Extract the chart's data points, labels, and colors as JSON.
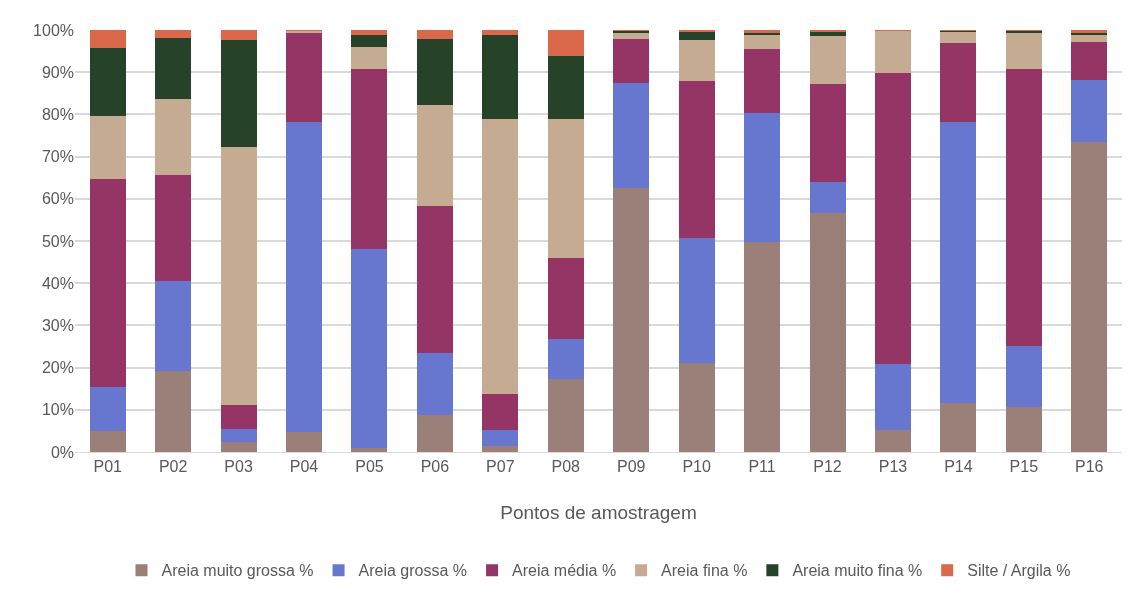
{
  "chart_data": {
    "type": "bar",
    "stacked": true,
    "xlabel": "Pontos de amostragem",
    "categories": [
      "P01",
      "P02",
      "P03",
      "P04",
      "P05",
      "P06",
      "P07",
      "P08",
      "P09",
      "P10",
      "P11",
      "P12",
      "P13",
      "P14",
      "P15",
      "P16"
    ],
    "series": [
      {
        "name": "Areia muito grossa %",
        "color": "#9b7f79",
        "values": [
          5,
          19.2,
          2.3,
          4.8,
          0.9,
          8.8,
          1.5,
          17.2,
          62.5,
          21,
          49.8,
          56.6,
          5.2,
          11.7,
          10.7,
          73.5
        ]
      },
      {
        "name": "Areia grossa %",
        "color": "#6777cf",
        "values": [
          10.3,
          21.3,
          3.1,
          73.5,
          47.2,
          14.7,
          3.8,
          9.6,
          24.9,
          29.8,
          30.5,
          7.4,
          15.6,
          66.4,
          14.5,
          14.7
        ]
      },
      {
        "name": "Areia média %",
        "color": "#953565",
        "values": [
          49.4,
          25.2,
          5.8,
          21.1,
          42.7,
          34.7,
          8.4,
          19.1,
          10.5,
          37.2,
          15.1,
          23.1,
          69,
          18.8,
          65.6,
          9
        ]
      },
      {
        "name": "Areia fina %",
        "color": "#c4ab92",
        "values": [
          15,
          18,
          61.1,
          0.4,
          5.1,
          24,
          65.1,
          33.1,
          1.5,
          9.7,
          3.4,
          11.5,
          10,
          2.8,
          8.6,
          1.6
        ]
      },
      {
        "name": "Areia muito fina %",
        "color": "#26432a",
        "values": [
          16.1,
          14.5,
          25.3,
          0,
          2.9,
          15.6,
          20,
          14.9,
          0.4,
          2,
          0.6,
          1.1,
          null,
          0.1,
          0.4,
          0.6
        ]
      },
      {
        "name": "Silte / Argila %",
        "color": "#d9694a",
        "values": [
          4.2,
          1.8,
          2.4,
          0.2,
          1.2,
          2.2,
          1.2,
          6.1,
          0.2,
          0.3,
          0.6,
          0.3,
          0.2,
          0.2,
          0.2,
          0.6
        ]
      }
    ],
    "ylim": [
      0,
      100
    ],
    "yticks": [
      {
        "value": 0,
        "label": "0%"
      },
      {
        "value": 10,
        "label": "10%"
      },
      {
        "value": 20,
        "label": "20%"
      },
      {
        "value": 30,
        "label": "30%"
      },
      {
        "value": 40,
        "label": "40%"
      },
      {
        "value": 50,
        "label": "50%"
      },
      {
        "value": 60,
        "label": "60%"
      },
      {
        "value": 70,
        "label": "70%"
      },
      {
        "value": 80,
        "label": "80%"
      },
      {
        "value": 90,
        "label": "90%"
      },
      {
        "value": 100,
        "label": "100%"
      }
    ],
    "grid": "y",
    "legend": "bottom"
  }
}
